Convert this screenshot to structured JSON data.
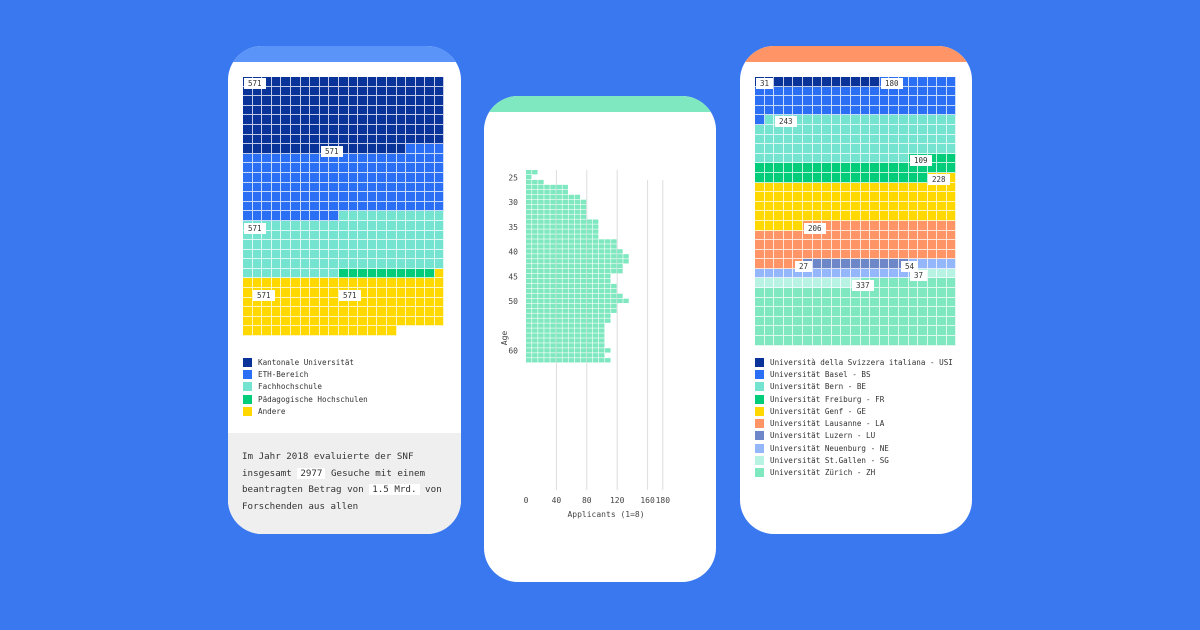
{
  "colors": {
    "background": "#3a78f0"
  },
  "panel1": {
    "top_color": "#5b94f8",
    "waffle_labels": [
      "571",
      "571",
      "571",
      "571",
      "571"
    ],
    "legend": [
      {
        "label": "Kantonale Universität",
        "color": "#0a3399"
      },
      {
        "label": "ETH-Bereich",
        "color": "#2b6ff5"
      },
      {
        "label": "Fachhochschule",
        "color": "#74e3cf"
      },
      {
        "label": "Pädagogische Hochschulen",
        "color": "#00cc7a"
      },
      {
        "label": "Andere",
        "color": "#ffd800"
      }
    ],
    "text": {
      "part1": "Im Jahr 2018 evaluierte der SNF insgesamt ",
      "hl1": "2977",
      "part2": " Gesuche mit einem beantragten Betrag von ",
      "hl2": "1.5 Mrd.",
      "part3": " von Forschenden aus allen"
    }
  },
  "panel2": {
    "top_color": "#80e8c0",
    "bar_color": "#80e8c0"
  },
  "panel3": {
    "top_color": "#ff9566",
    "waffle_labels": [
      "31",
      "180",
      "243",
      "109",
      "228",
      "206",
      "27",
      "54",
      "37",
      "337"
    ],
    "legend": [
      {
        "label": "Università della Svizzera italiana - USI",
        "color": "#0a3399"
      },
      {
        "label": "Universität Basel - BS",
        "color": "#2b6ff5"
      },
      {
        "label": "Universität Bern - BE",
        "color": "#74e3cf"
      },
      {
        "label": "Universität Freiburg - FR",
        "color": "#00cc7a"
      },
      {
        "label": "Universität Genf - GE",
        "color": "#ffd800"
      },
      {
        "label": "Universität Lausanne - LA",
        "color": "#ff9566"
      },
      {
        "label": "Universität Luzern - LU",
        "color": "#6d87c8"
      },
      {
        "label": "Universität Neuenburg - NE",
        "color": "#94b6fb"
      },
      {
        "label": "Universität St.Gallen - SG",
        "color": "#b8f2e2"
      },
      {
        "label": "Universität Zürich - ZH",
        "color": "#80e8c0"
      }
    ]
  },
  "chart_data": [
    {
      "type": "waffle",
      "title": "",
      "unit_per_cell": "unlabeled",
      "categories": [
        "Kantonale Universität",
        "ETH-Bereich",
        "Fachhochschule",
        "Pädagogische Hochschulen",
        "Andere"
      ],
      "cells": [
        164,
        140,
        126,
        10,
        122
      ],
      "labels": [
        "571",
        "571",
        "571",
        "571",
        "571"
      ],
      "grid": {
        "columns": 21,
        "rows": 28
      }
    },
    {
      "type": "bar",
      "orientation": "horizontal",
      "title": "",
      "xlabel": "Applicants (1=8)",
      "ylabel": "Age",
      "x_ticks": [
        0,
        40,
        80,
        120,
        160,
        180
      ],
      "y_ticks": [
        25,
        30,
        35,
        40,
        45,
        50,
        55,
        60
      ],
      "categories": [
        24,
        25,
        26,
        27,
        28,
        29,
        30,
        31,
        32,
        33,
        34,
        35,
        36,
        37,
        38,
        39,
        40,
        41,
        42,
        43,
        44,
        45,
        46,
        47,
        48,
        49,
        50,
        51,
        52,
        53,
        54,
        55,
        56,
        57,
        58,
        59,
        60,
        61,
        62
      ],
      "values": [
        16,
        8,
        24,
        56,
        56,
        72,
        80,
        80,
        80,
        80,
        96,
        96,
        96,
        96,
        120,
        120,
        128,
        136,
        136,
        128,
        128,
        112,
        112,
        120,
        120,
        128,
        136,
        120,
        120,
        112,
        112,
        104,
        104,
        104,
        104,
        104,
        112,
        104,
        112
      ],
      "note": "values are approximate, read from squares (each square = 8 applicants)"
    },
    {
      "type": "waffle",
      "title": "",
      "categories": [
        "USI",
        "BS",
        "BE",
        "FR",
        "GE",
        "LA",
        "LU",
        "NE",
        "SG",
        "ZH"
      ],
      "values": [
        31,
        180,
        243,
        109,
        228,
        206,
        27,
        54,
        37,
        337
      ],
      "grid": {
        "columns": 21,
        "rows": 28
      }
    }
  ]
}
